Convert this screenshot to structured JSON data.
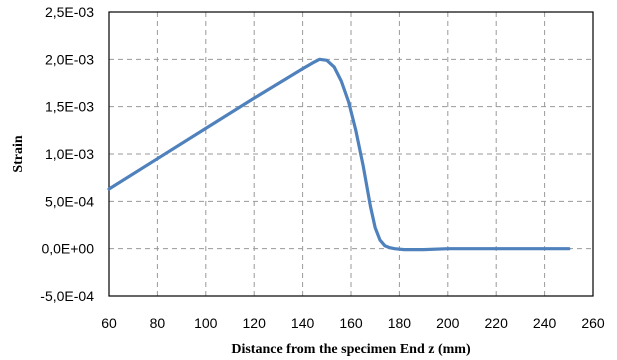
{
  "chart_data": {
    "type": "line",
    "title": "",
    "xlabel": "Distance from  the specimen End  z (mm)",
    "ylabel": "Strain",
    "xlim": [
      60,
      260
    ],
    "ylim": [
      -0.0005,
      0.0025
    ],
    "x_ticks": [
      60,
      80,
      100,
      120,
      140,
      160,
      180,
      200,
      220,
      240,
      260
    ],
    "x_tick_labels": [
      "60",
      "80",
      "100",
      "120",
      "140",
      "160",
      "180",
      "200",
      "220",
      "240",
      "260"
    ],
    "y_ticks": [
      -0.0005,
      0,
      0.0005,
      0.001,
      0.0015,
      0.002,
      0.0025
    ],
    "y_tick_labels": [
      "-5,0E-04",
      "0,0E+00",
      "5,0E-04",
      "1,0E-03",
      "1,5E-03",
      "2,0E-03",
      "2,5E-03"
    ],
    "grid": true,
    "legend": "none",
    "series": [
      {
        "color": "#4f81bd",
        "x": [
          60,
          80,
          100,
          120,
          140,
          144,
          147,
          150,
          153,
          156,
          159,
          162,
          165,
          168,
          170,
          172,
          174,
          176,
          178,
          182,
          190,
          200,
          220,
          240,
          250
        ],
        "y": [
          0.00063,
          0.00095,
          0.00127,
          0.00159,
          0.0019,
          0.00196,
          0.002,
          0.00199,
          0.00192,
          0.00177,
          0.00155,
          0.00125,
          0.00088,
          0.00045,
          0.00022,
          9e-05,
          3e-05,
          1e-05,
          0.0,
          -1e-05,
          -1e-05,
          0.0,
          0.0,
          0.0,
          0.0
        ]
      }
    ]
  }
}
